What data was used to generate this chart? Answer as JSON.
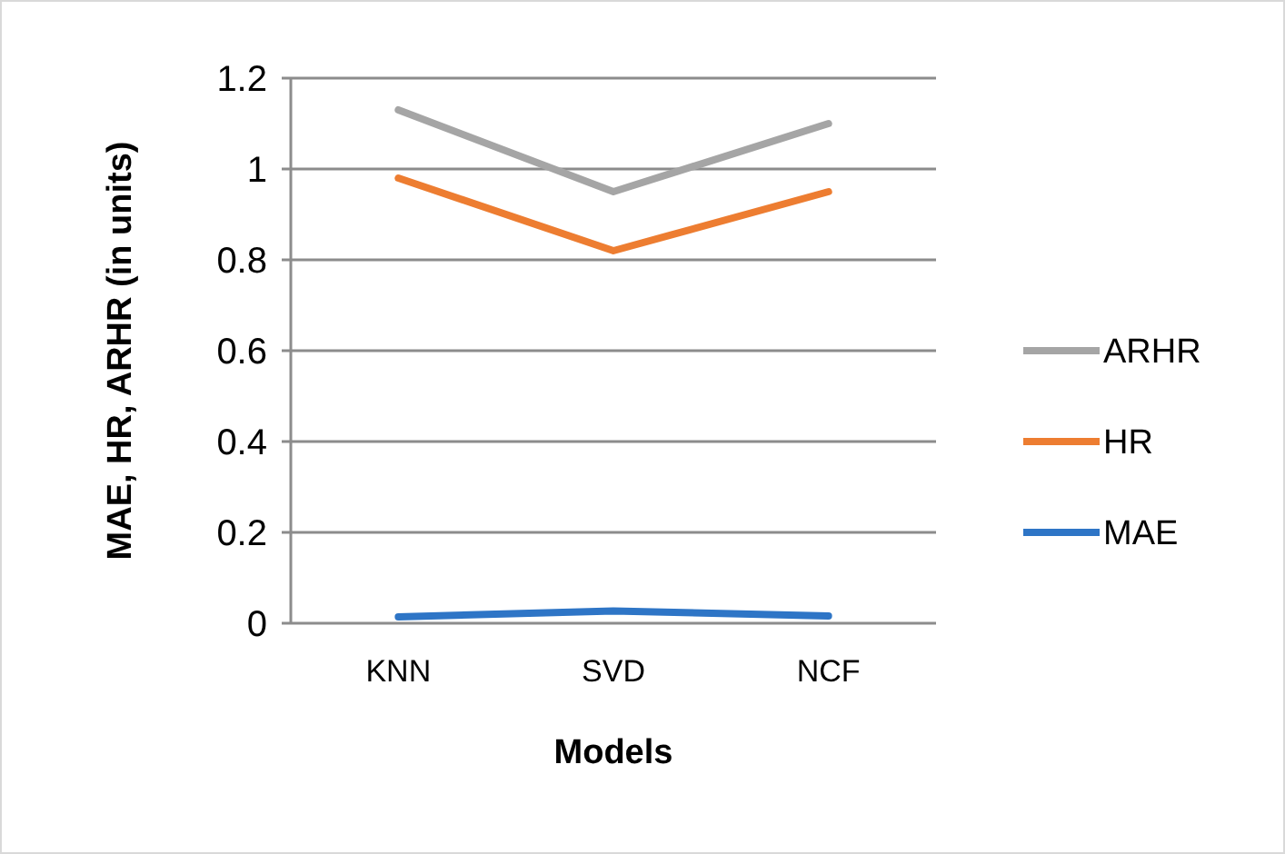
{
  "chart_data": {
    "type": "line",
    "xlabel": "Models",
    "ylabel": "MAE, HR, ARHR (in units)",
    "categories": [
      "KNN",
      "SVD",
      "NCF"
    ],
    "series": [
      {
        "name": "ARHR",
        "color": "#a5a5a5",
        "values": [
          1.13,
          0.95,
          1.1
        ]
      },
      {
        "name": "HR",
        "color": "#ed7d31",
        "values": [
          0.98,
          0.82,
          0.95
        ]
      },
      {
        "name": "MAE",
        "color": "#2e75c6",
        "values": [
          0.014,
          0.027,
          0.016
        ]
      }
    ],
    "ylim": [
      0,
      1.2
    ],
    "yticks": [
      0,
      {
        "value": 0.2,
        "label": "0.2"
      },
      {
        "value": 0.4,
        "label": "0.4"
      },
      {
        "value": 0.6,
        "label": "0.6"
      },
      {
        "value": 0.8,
        "label": "0.8"
      },
      1,
      {
        "value": 1.2,
        "label": "1.2"
      }
    ],
    "grid": "y",
    "legend": "right",
    "marker": "none",
    "line_style": "solid"
  }
}
